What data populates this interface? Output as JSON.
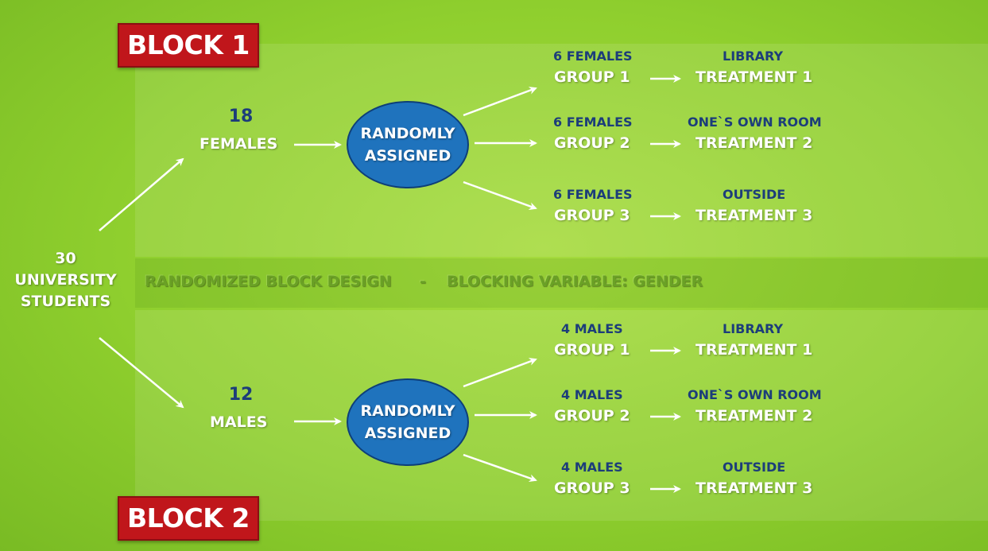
{
  "block1": {
    "label": "BLOCK 1"
  },
  "block2": {
    "label": "BLOCK 2"
  },
  "root": {
    "count": "30",
    "line1": "UNIVERSITY",
    "line2": "STUDENTS"
  },
  "design": {
    "title": "RANDOMIZED BLOCK DESIGN",
    "separator": "-",
    "variable": "BLOCKING VARIABLE:  GENDER"
  },
  "females": {
    "count": "18",
    "label": "FEMALES",
    "assign_line1": "RANDOMLY",
    "assign_line2": "ASSIGNED",
    "groups": [
      {
        "size": "6 FEMALES",
        "group": "GROUP 1",
        "place": "LIBRARY",
        "treatment": "TREATMENT 1"
      },
      {
        "size": "6 FEMALES",
        "group": "GROUP 2",
        "place": "ONE`S OWN ROOM",
        "treatment": "TREATMENT 2"
      },
      {
        "size": "6 FEMALES",
        "group": "GROUP 3",
        "place": "OUTSIDE",
        "treatment": "TREATMENT 3"
      }
    ]
  },
  "males": {
    "count": "12",
    "label": "MALES",
    "assign_line1": "RANDOMLY",
    "assign_line2": "ASSIGNED",
    "groups": [
      {
        "size": "4 MALES",
        "group": "GROUP 1",
        "place": "LIBRARY",
        "treatment": "TREATMENT 1"
      },
      {
        "size": "4 MALES",
        "group": "GROUP 2",
        "place": "ONE`S OWN ROOM",
        "treatment": "TREATMENT 2"
      },
      {
        "size": "4 MALES",
        "group": "GROUP 3",
        "place": "OUTSIDE",
        "treatment": "TREATMENT 3"
      }
    ]
  },
  "colors": {
    "background": "#8fcf2e",
    "block_label": "#c0161b",
    "ellipse": "#1f73bd",
    "accent_text": "#1c3d7a"
  }
}
